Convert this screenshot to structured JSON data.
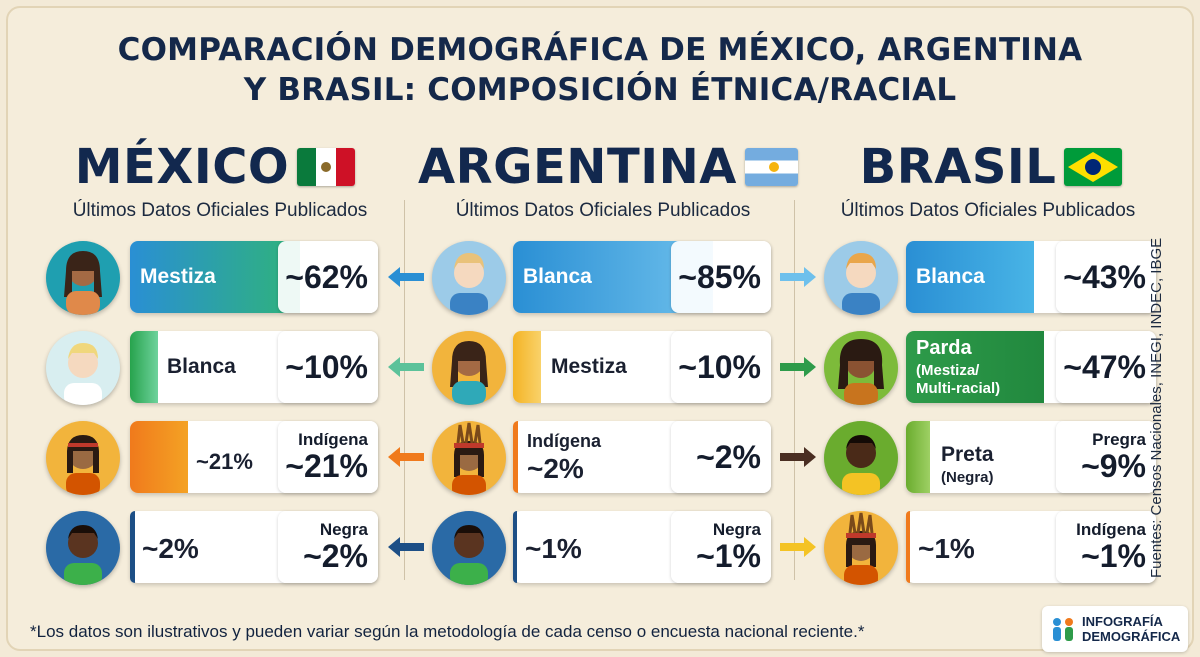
{
  "title": {
    "line1": "COMPARACIÓN DEMOGRÁFICA DE MÉXICO, ARGENTINA",
    "line2": "Y BRASIL: COMPOSICIÓN ÉTNICA/RACIAL"
  },
  "countries": {
    "mexico": {
      "name": "MÉXICO",
      "subtitle": "Últimos Datos Oficiales Publicados",
      "flag_icon": "mexico-flag-icon"
    },
    "argentina": {
      "name": "ARGENTINA",
      "subtitle": "Últimos Datos Oficiales Publicados",
      "flag_icon": "argentina-flag-icon"
    },
    "brasil": {
      "name": "BRASIL",
      "subtitle": "Últimos Datos Oficiales Publicados",
      "flag_icon": "brazil-flag-icon"
    }
  },
  "rows": {
    "mx": [
      {
        "cat": "Mestiza",
        "pct": "~62%",
        "box_label": ""
      },
      {
        "cat": "Blanca",
        "pct": "~10%",
        "box_label": ""
      },
      {
        "cat": "~21%",
        "pct": "~21%",
        "box_label": "Indígena"
      },
      {
        "cat": "~2%",
        "pct": "~2%",
        "box_label": "Negra"
      }
    ],
    "ar": [
      {
        "cat": "Blanca",
        "pct": "~85%",
        "box_label": ""
      },
      {
        "cat": "Mestiza",
        "pct": "~10%",
        "box_label": ""
      },
      {
        "cat": "Indígena",
        "cat2": "~2%",
        "pct": "~2%",
        "box_label": ""
      },
      {
        "cat": "~1%",
        "pct": "~1%",
        "box_label": "Negra"
      }
    ],
    "br": [
      {
        "cat": "Blanca",
        "pct": "~43%",
        "box_label": ""
      },
      {
        "cat": "Parda",
        "cat_sub": "(Mestiza/",
        "cat_sub2": "Multi-racial)",
        "pct": "~47%",
        "box_label": ""
      },
      {
        "cat": "Preta",
        "cat_sub": "(Negra)",
        "pct": "~9%",
        "box_label": "Pregra"
      },
      {
        "cat": "~1%",
        "pct": "~1%",
        "box_label": "Indígena"
      }
    ]
  },
  "sources": "Fuentes: Censos Nacionales, INEGI, INDEC, IBGE",
  "footnote": "*Los datos son ilustrativos y pueden variar según la metodología de cada censo o encuesta nacional reciente.*",
  "logo": {
    "line1": "INFOGRAFÍA",
    "line2": "DEMOGRÁFICA",
    "icon": "people-chart-icon"
  },
  "colors": {
    "background": "#f5eddb",
    "title": "#14284a",
    "blue_fill": "#2a8fd4",
    "green_fill": "#2e9b4a",
    "orange_fill": "#f07a1c",
    "navy_fill": "#1d4f86",
    "yellow_fill": "#f4b324"
  },
  "chart_data": {
    "type": "bar",
    "title": "COMPARACIÓN DEMOGRÁFICA DE MÉXICO, ARGENTINA Y BRASIL: COMPOSICIÓN ÉTNICA/RACIAL",
    "groups": [
      {
        "country": "MÉXICO",
        "series": [
          {
            "name": "Mestiza",
            "value": 62
          },
          {
            "name": "Blanca",
            "value": 10
          },
          {
            "name": "Indígena",
            "value": 21
          },
          {
            "name": "Negra",
            "value": 2
          }
        ]
      },
      {
        "country": "ARGENTINA",
        "series": [
          {
            "name": "Blanca",
            "value": 85
          },
          {
            "name": "Mestiza",
            "value": 10
          },
          {
            "name": "Indígena",
            "value": 2
          },
          {
            "name": "Negra",
            "value": 1
          }
        ]
      },
      {
        "country": "BRASIL",
        "series": [
          {
            "name": "Blanca",
            "value": 43
          },
          {
            "name": "Parda",
            "value": 47
          },
          {
            "name": "Preta",
            "value": 9
          },
          {
            "name": "Indígena",
            "value": 1
          }
        ]
      }
    ]
  }
}
